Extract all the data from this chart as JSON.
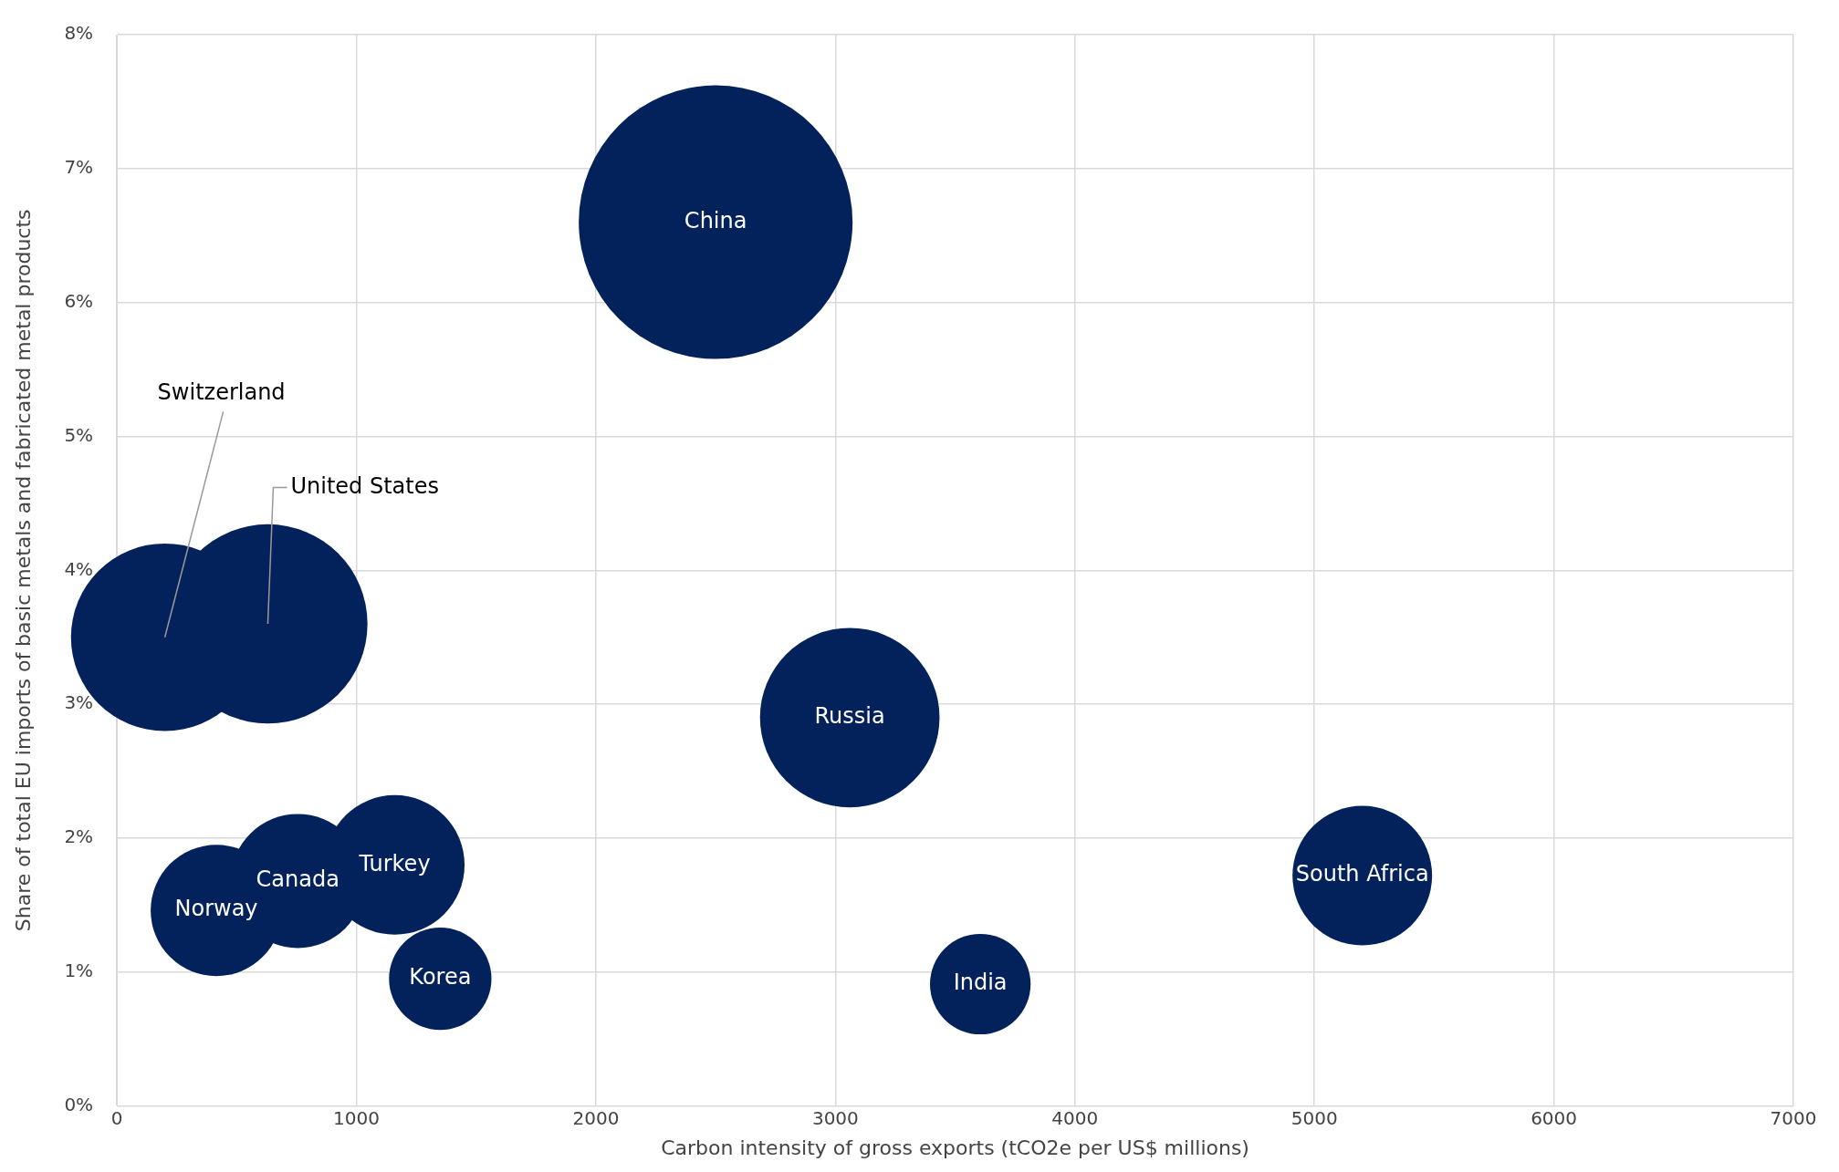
{
  "chart_data": {
    "type": "bubble",
    "xlabel": "Carbon intensity of gross exports (tCO2e per US$ millions)",
    "ylabel": "Share of total EU imports of basic metals and fabricated metal products",
    "xlim": [
      0,
      7000
    ],
    "xticks": [
      0,
      1000,
      2000,
      3000,
      4000,
      5000,
      6000,
      7000
    ],
    "ylim": [
      0,
      8
    ],
    "yticks": [
      {
        "value": 0,
        "label": "0%"
      },
      {
        "value": 1,
        "label": "1%"
      },
      {
        "value": 2,
        "label": "2%"
      },
      {
        "value": 3,
        "label": "3%"
      },
      {
        "value": 4,
        "label": "4%"
      },
      {
        "value": 5,
        "label": "5%"
      },
      {
        "value": 6,
        "label": "6%"
      },
      {
        "value": 7,
        "label": "7%"
      },
      {
        "value": 8,
        "label": "8%"
      }
    ],
    "grid": true,
    "legend": false,
    "series": [
      {
        "name": "China",
        "color": "#03215b",
        "x": [
          2500
        ],
        "values": [
          6.6
        ],
        "sizes": [
          1
        ]
      },
      {
        "name": "Switzerland",
        "color": "#03215b",
        "x": [
          200
        ],
        "values": [
          3.5
        ],
        "sizes": [
          0.47
        ]
      },
      {
        "name": "United States",
        "color": "#03215b",
        "x": [
          630
        ],
        "values": [
          3.6
        ],
        "sizes": [
          0.53
        ]
      },
      {
        "name": "Russia",
        "color": "#03215b",
        "x": [
          3060
        ],
        "values": [
          2.9
        ],
        "sizes": [
          0.43
        ]
      },
      {
        "name": "South Africa",
        "color": "#03215b",
        "x": [
          5200
        ],
        "values": [
          1.72
        ],
        "sizes": [
          0.26
        ]
      },
      {
        "name": "Turkey",
        "color": "#03215b",
        "x": [
          1160
        ],
        "values": [
          1.8
        ],
        "sizes": [
          0.26
        ]
      },
      {
        "name": "Canada",
        "color": "#03215b",
        "x": [
          755
        ],
        "values": [
          1.68
        ],
        "sizes": [
          0.24
        ]
      },
      {
        "name": "Norway",
        "color": "#03215b",
        "x": [
          415
        ],
        "values": [
          1.46
        ],
        "sizes": [
          0.23
        ]
      },
      {
        "name": "Korea",
        "color": "#03215b",
        "x": [
          1350
        ],
        "values": [
          0.95
        ],
        "sizes": [
          0.14
        ]
      },
      {
        "name": "India",
        "color": "#03215b",
        "x": [
          3605
        ],
        "values": [
          0.91
        ],
        "sizes": [
          0.135
        ]
      }
    ]
  }
}
